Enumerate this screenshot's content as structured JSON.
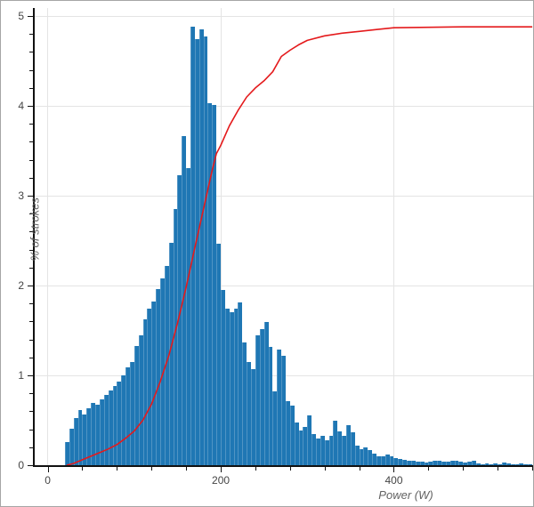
{
  "chart_data": {
    "type": "bar",
    "subtype": "histogram-with-cumulative-line",
    "title": "",
    "xlabel": "Power (W)",
    "ylabel": "% of strokes",
    "xlim": [
      -15,
      562
    ],
    "ylim": [
      0,
      5.09
    ],
    "grid": true,
    "legend": "none",
    "x_major_ticks": [
      0,
      200,
      400
    ],
    "x_major_tick_labels": [
      "0",
      "200",
      "400"
    ],
    "x_minor_tick_step": 40,
    "x_minor_tick_max": 560,
    "y_major_ticks": [
      0,
      1,
      2,
      3,
      4,
      5
    ],
    "y_major_tick_labels": [
      "0",
      "1",
      "2",
      "3",
      "4",
      "5"
    ],
    "y_minor_tick_step": 0.2,
    "bar_color": "#1f77b4",
    "line_color": "#e41a1c",
    "grid_color": "#e4e4e4",
    "axis_color": "#111111",
    "tick_label_color": "#454545",
    "axis_title_color": "#636363",
    "histogram": {
      "bin_start": 20,
      "bin_width": 5,
      "heights": [
        0.26,
        0.41,
        0.52,
        0.61,
        0.56,
        0.63,
        0.69,
        0.67,
        0.73,
        0.78,
        0.83,
        0.88,
        0.93,
        1.0,
        1.09,
        1.15,
        1.33,
        1.45,
        1.62,
        1.74,
        1.82,
        1.96,
        2.08,
        2.22,
        2.48,
        2.85,
        3.23,
        3.66,
        3.31,
        4.88,
        4.74,
        4.85,
        4.77,
        4.03,
        4.01,
        2.47,
        1.95,
        1.74,
        1.7,
        1.74,
        1.81,
        1.37,
        1.15,
        1.07,
        1.45,
        1.52,
        1.59,
        1.32,
        0.82,
        1.29,
        1.22,
        0.71,
        0.66,
        0.48,
        0.39,
        0.43,
        0.55,
        0.35,
        0.3,
        0.33,
        0.28,
        0.33,
        0.5,
        0.38,
        0.33,
        0.45,
        0.37,
        0.22,
        0.18,
        0.2,
        0.17,
        0.13,
        0.1,
        0.1,
        0.12,
        0.1,
        0.08,
        0.07,
        0.06,
        0.05,
        0.05,
        0.04,
        0.04,
        0.03,
        0.04,
        0.05,
        0.05,
        0.04,
        0.04,
        0.05,
        0.05,
        0.04,
        0.03,
        0.04,
        0.05,
        0.02,
        0.01,
        0.02,
        0.01,
        0.02,
        0.01,
        0.03,
        0.02,
        0.01,
        0.01,
        0.02,
        0.01,
        0.01
      ]
    },
    "cumulative_line": {
      "x": [
        22,
        30,
        40,
        50,
        60,
        70,
        80,
        90,
        100,
        110,
        120,
        130,
        140,
        150,
        160,
        170,
        180,
        190,
        195,
        200,
        210,
        220,
        230,
        240,
        250,
        260,
        270,
        280,
        290,
        300,
        320,
        340,
        360,
        380,
        400,
        440,
        480,
        520,
        560
      ],
      "y": [
        0,
        0.02,
        0.06,
        0.1,
        0.14,
        0.18,
        0.23,
        0.3,
        0.38,
        0.5,
        0.68,
        0.93,
        1.22,
        1.58,
        1.98,
        2.42,
        2.85,
        3.28,
        3.47,
        3.56,
        3.78,
        3.95,
        4.1,
        4.2,
        4.28,
        4.38,
        4.55,
        4.62,
        4.68,
        4.73,
        4.78,
        4.81,
        4.83,
        4.85,
        4.87,
        4.875,
        4.88,
        4.88,
        4.88
      ]
    }
  }
}
